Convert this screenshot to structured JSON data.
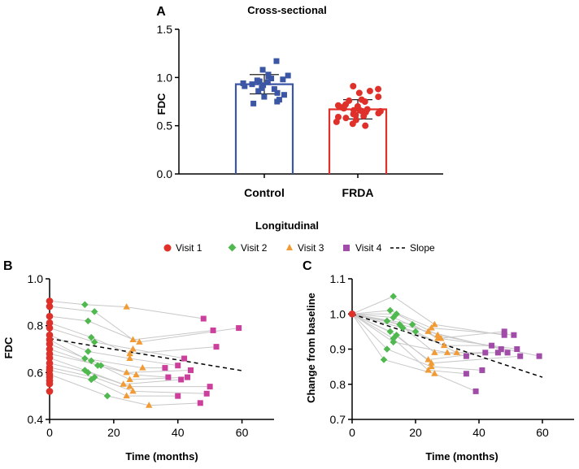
{
  "colors": {
    "control": "#3a56a4",
    "frda": "#e0302a",
    "visit1": "#e0302a",
    "visit2": "#4fb84f",
    "visit3": "#f29a34",
    "visit4": "#a04ca8",
    "visit4_fdc": "#cc3f9c",
    "line": "#c8c8c8",
    "slope": "#000000"
  },
  "legend": {
    "title": "Longitudinal",
    "visit1": "Visit 1",
    "visit2": "Visit 2",
    "visit3": "Visit 3",
    "visit4": "Visit 4",
    "slope": "Slope"
  },
  "chart_data": [
    {
      "id": "A",
      "panel_label": "A",
      "type": "bar",
      "title": "Cross-sectional",
      "ylabel": "FDC",
      "ylim": [
        0,
        1.5
      ],
      "yticks": [
        "0.0",
        "0.5",
        "1.0",
        "1.5"
      ],
      "categories": [
        "Control",
        "FRDA"
      ],
      "means": [
        0.93,
        0.67
      ],
      "sd": [
        0.1,
        0.1
      ],
      "points": [
        [
          1.17,
          1.08,
          1.03,
          1.02,
          1.01,
          0.99,
          0.98,
          0.97,
          0.96,
          0.95,
          0.94,
          0.93,
          0.92,
          0.91,
          0.89,
          0.88,
          0.86,
          0.84,
          0.82,
          0.8,
          0.77,
          0.75,
          0.73
        ],
        [
          0.91,
          0.88,
          0.86,
          0.84,
          0.8,
          0.77,
          0.76,
          0.75,
          0.72,
          0.71,
          0.7,
          0.69,
          0.68,
          0.67,
          0.66,
          0.66,
          0.65,
          0.65,
          0.64,
          0.63,
          0.62,
          0.61,
          0.6,
          0.59,
          0.58,
          0.56,
          0.54,
          0.52,
          0.5
        ]
      ]
    },
    {
      "id": "B",
      "panel_label": "B",
      "type": "scatter",
      "ylabel": "FDC",
      "xlabel": "Time (months)",
      "xlim": [
        0,
        70
      ],
      "ylim": [
        0.4,
        1.0
      ],
      "xticks": [
        "0",
        "20",
        "40",
        "60"
      ],
      "yticks": [
        "0.4",
        "0.6",
        "0.8",
        "1.0"
      ],
      "slope_line": [
        [
          0,
          0.745
        ],
        [
          60,
          0.608
        ]
      ],
      "subjects": [
        {
          "v1": 0.905,
          "v2": [
            11,
            0.89
          ],
          "v3": [
            24,
            0.88
          ],
          "v4": [
            48,
            0.83
          ]
        },
        {
          "v1": 0.882,
          "v2": [
            14,
            0.86
          ],
          "v3": [
            26,
            0.74
          ],
          "v4": [
            51,
            0.78
          ]
        },
        {
          "v1": 0.84,
          "v2": [
            12,
            0.82
          ],
          "v3": [
            28,
            0.73
          ],
          "v4": [
            59,
            0.79
          ]
        },
        {
          "v1": 0.812,
          "v2": [
            13,
            0.75
          ],
          "v3": [
            25,
            0.68
          ],
          "v4": [
            52,
            0.71
          ]
        },
        {
          "v1": 0.79,
          "v2": [
            14,
            0.73
          ],
          "v3": [
            26,
            0.7
          ],
          "v4": [
            42,
            0.66
          ]
        },
        {
          "v1": 0.76,
          "v2": [
            12,
            0.69
          ],
          "v3": [
            25,
            0.66
          ],
          "v4": [
            40,
            0.63
          ]
        },
        {
          "v1": 0.74,
          "v2": [
            11,
            0.66
          ],
          "v3": [
            29,
            0.62
          ],
          "v4": [
            36,
            0.62
          ]
        },
        {
          "v1": 0.722,
          "v2": [
            13,
            0.65
          ],
          "v3": [
            24,
            0.6
          ],
          "v4": [
            44,
            0.61
          ]
        },
        {
          "v1": 0.7,
          "v2": [
            15,
            0.63
          ],
          "v3": [
            27,
            0.59
          ],
          "v4": [
            37,
            0.58
          ]
        },
        {
          "v1": 0.68,
          "v2": [
            16,
            0.63
          ],
          "v3": [
            25,
            0.57
          ],
          "v4": [
            43,
            0.58
          ]
        },
        {
          "v1": 0.662,
          "v2": [
            11,
            0.61
          ],
          "v3": [
            23,
            0.55
          ],
          "v4": [
            41,
            0.57
          ]
        },
        {
          "v1": 0.64,
          "v2": [
            12,
            0.6
          ],
          "v3": [
            25,
            0.54
          ],
          "v4": [
            50,
            0.54
          ]
        },
        {
          "v1": 0.622,
          "v2": [
            14,
            0.58
          ],
          "v3": [
            26,
            0.52
          ],
          "v4": [
            49,
            0.51
          ]
        },
        {
          "v1": 0.61,
          "v2": [
            13,
            0.57
          ],
          "v3": [
            24,
            0.5
          ],
          "v4": [
            40,
            0.5
          ]
        },
        {
          "v1": 0.592,
          "v2": [
            18,
            0.5
          ],
          "v3": [
            31,
            0.46
          ],
          "v4": [
            47,
            0.47
          ]
        },
        {
          "v1": 0.58
        },
        {
          "v1": 0.565
        },
        {
          "v1": 0.552
        },
        {
          "v1": 0.52
        }
      ]
    },
    {
      "id": "C",
      "panel_label": "C",
      "type": "scatter",
      "ylabel": "Change from baseline",
      "xlabel": "Time (months)",
      "xlim": [
        0,
        70
      ],
      "ylim": [
        0.7,
        1.1
      ],
      "xticks": [
        "0",
        "20",
        "40",
        "60"
      ],
      "yticks": [
        "0.7",
        "0.8",
        "0.9",
        "1.0",
        "1.1"
      ],
      "baseline": 1.0,
      "slope_line": [
        [
          0,
          1.0
        ],
        [
          60,
          0.82
        ]
      ],
      "subjects": [
        {
          "v2": [
            13,
            1.05
          ],
          "v3": [
            26,
            0.97
          ],
          "v4": [
            48,
            0.94
          ]
        },
        {
          "v2": [
            12,
            1.01
          ],
          "v3": [
            25,
            0.96
          ],
          "v4": [
            51,
            0.94
          ]
        },
        {
          "v2": [
            14,
            1.0
          ],
          "v3": [
            27,
            0.94
          ],
          "v4": [
            59,
            0.88
          ]
        },
        {
          "v2": [
            13,
            0.99
          ],
          "v3": [
            28,
            0.93
          ],
          "v4": [
            52,
            0.9
          ]
        },
        {
          "v2": [
            11,
            0.98
          ],
          "v3": [
            24,
            0.95
          ],
          "v4": [
            47,
            0.9
          ]
        },
        {
          "v2": [
            15,
            0.97
          ],
          "v3": [
            26,
            0.89
          ],
          "v4": [
            49,
            0.89
          ]
        },
        {
          "v2": [
            16,
            0.96
          ],
          "v3": [
            29,
            0.91
          ],
          "v4": [
            44,
            0.91
          ]
        },
        {
          "v2": [
            19,
            0.97
          ],
          "v3": [
            27,
            0.93
          ],
          "v4": [
            48,
            0.95
          ]
        },
        {
          "v2": [
            12,
            0.95
          ],
          "v3": [
            24,
            0.87
          ],
          "v4": [
            42,
            0.89
          ]
        },
        {
          "v2": [
            14,
            0.94
          ],
          "v3": [
            25,
            0.86
          ],
          "v4": [
            53,
            0.88
          ]
        },
        {
          "v2": [
            13,
            0.92
          ],
          "v3": [
            30,
            0.89
          ],
          "v4": [
            36,
            0.88
          ]
        },
        {
          "v2": [
            11,
            0.9
          ],
          "v3": [
            25,
            0.85
          ],
          "v4": [
            41,
            0.84
          ]
        },
        {
          "v2": [
            13,
            0.93
          ],
          "v3": [
            24,
            0.84
          ],
          "v4": [
            36,
            0.83
          ]
        },
        {
          "v2": [
            10,
            0.87
          ],
          "v3": [
            26,
            0.83
          ],
          "v4": [
            39,
            0.78
          ]
        },
        {
          "v2": [
            20,
            0.95
          ],
          "v3": [
            33,
            0.89
          ],
          "v4": [
            46,
            0.89
          ]
        }
      ]
    }
  ]
}
